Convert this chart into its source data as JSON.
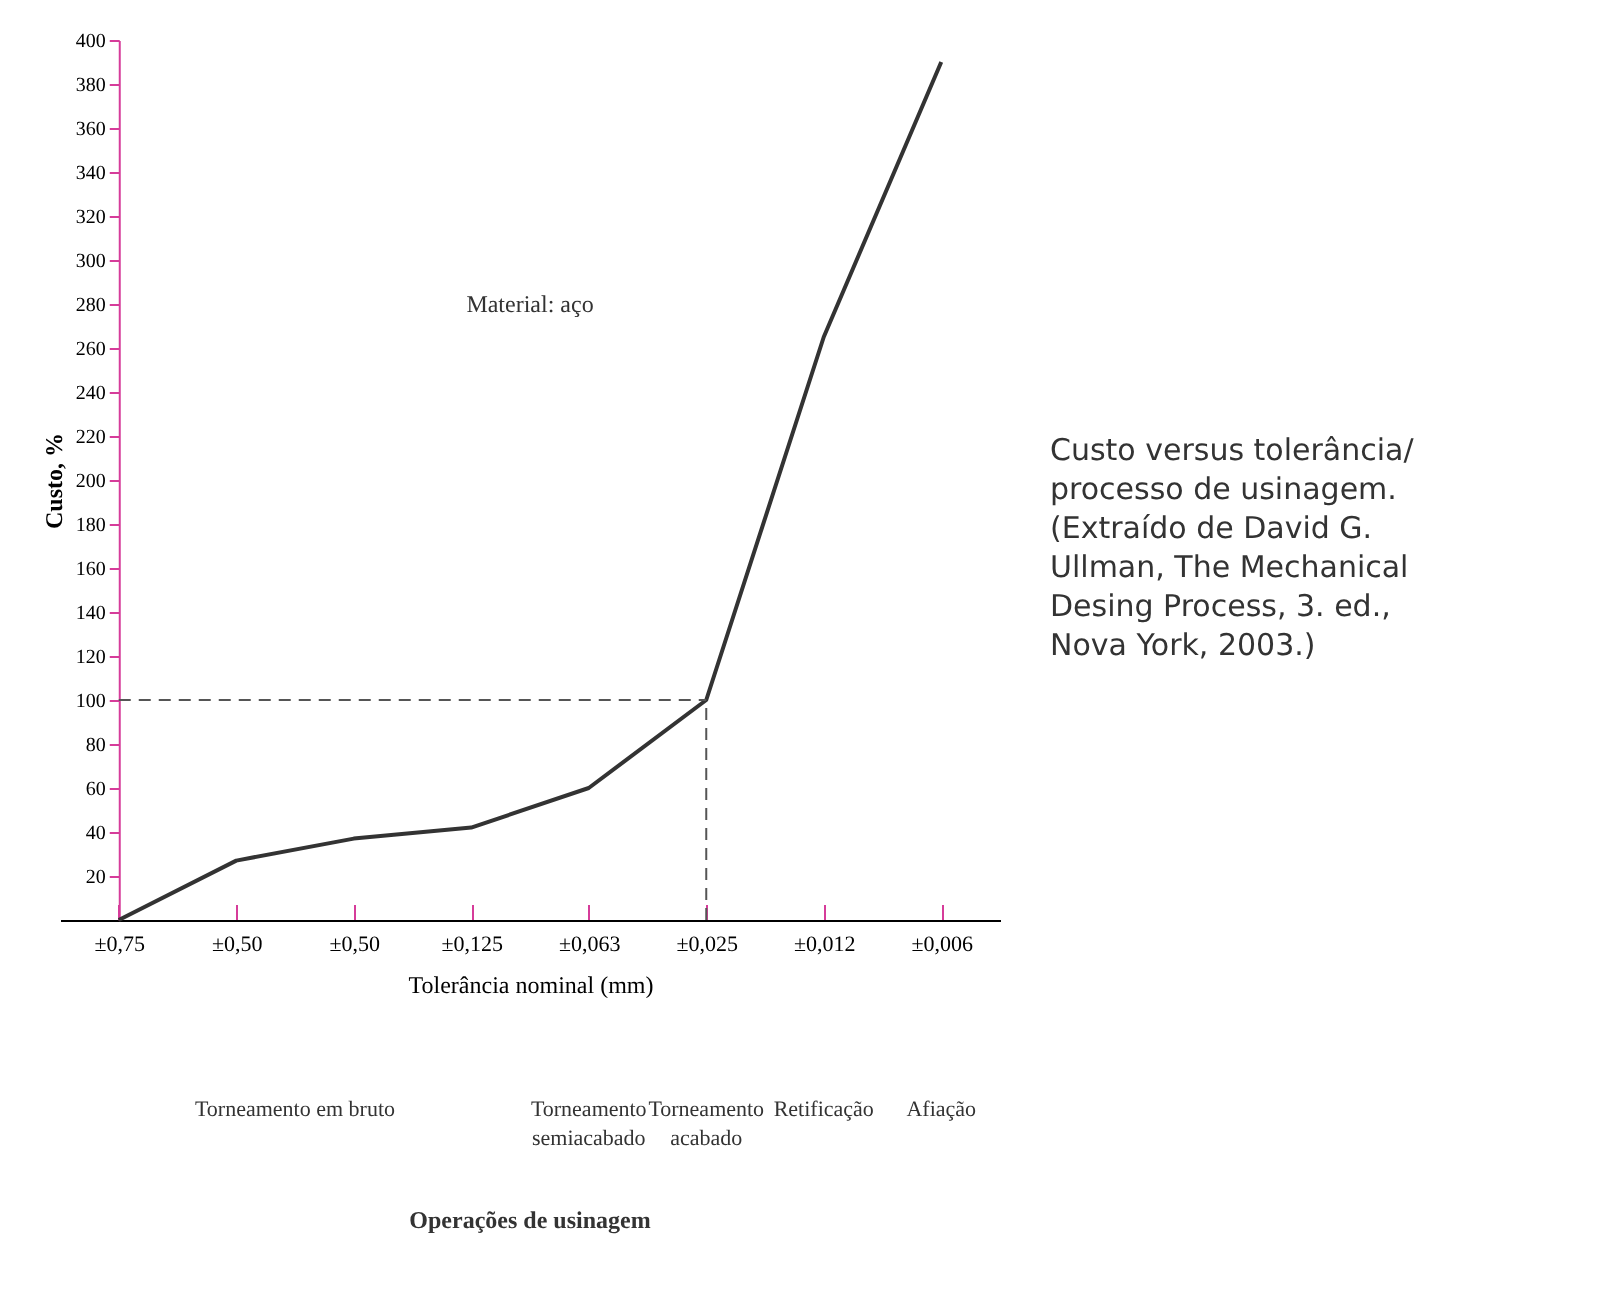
{
  "chart_data": {
    "type": "line",
    "ylabel": "Custo, %",
    "xlabel": "Tolerância nominal (mm)",
    "categories": [
      "±0,75",
      "±0,50",
      "±0,50",
      "±0,125",
      "±0,063",
      "±0,025",
      "±0,012",
      "±0,006"
    ],
    "series": [
      {
        "color": "#333333",
        "values": [
          0,
          27,
          37,
          42,
          60,
          100,
          265,
          390
        ]
      }
    ],
    "ylim": [
      0,
      400
    ],
    "yticks": [
      20,
      40,
      60,
      80,
      100,
      120,
      140,
      160,
      180,
      200,
      220,
      240,
      260,
      280,
      300,
      320,
      340,
      360,
      380,
      400
    ],
    "ref_lines": [
      {
        "axis": "y",
        "value": 100,
        "color": "#555555",
        "line_style": "dashed"
      },
      {
        "axis": "x",
        "value": "±0,025",
        "color": "#555555",
        "line_style": "dashed"
      }
    ],
    "grid": false,
    "marker": "none",
    "line_style": "solid",
    "annotations": [
      "Material: aço",
      "Torneamento em bruto",
      "Torneamento semiacabado",
      "Torneamento acabado",
      "Retificação",
      "Afiação",
      "Operações de usinagem",
      "Custo versus tolerância/ processo de usinagem. (Extraído de David G. Ullman, The Mechanical Desing Process, 3. ed., Nova York, 2003.)"
    ]
  }
}
